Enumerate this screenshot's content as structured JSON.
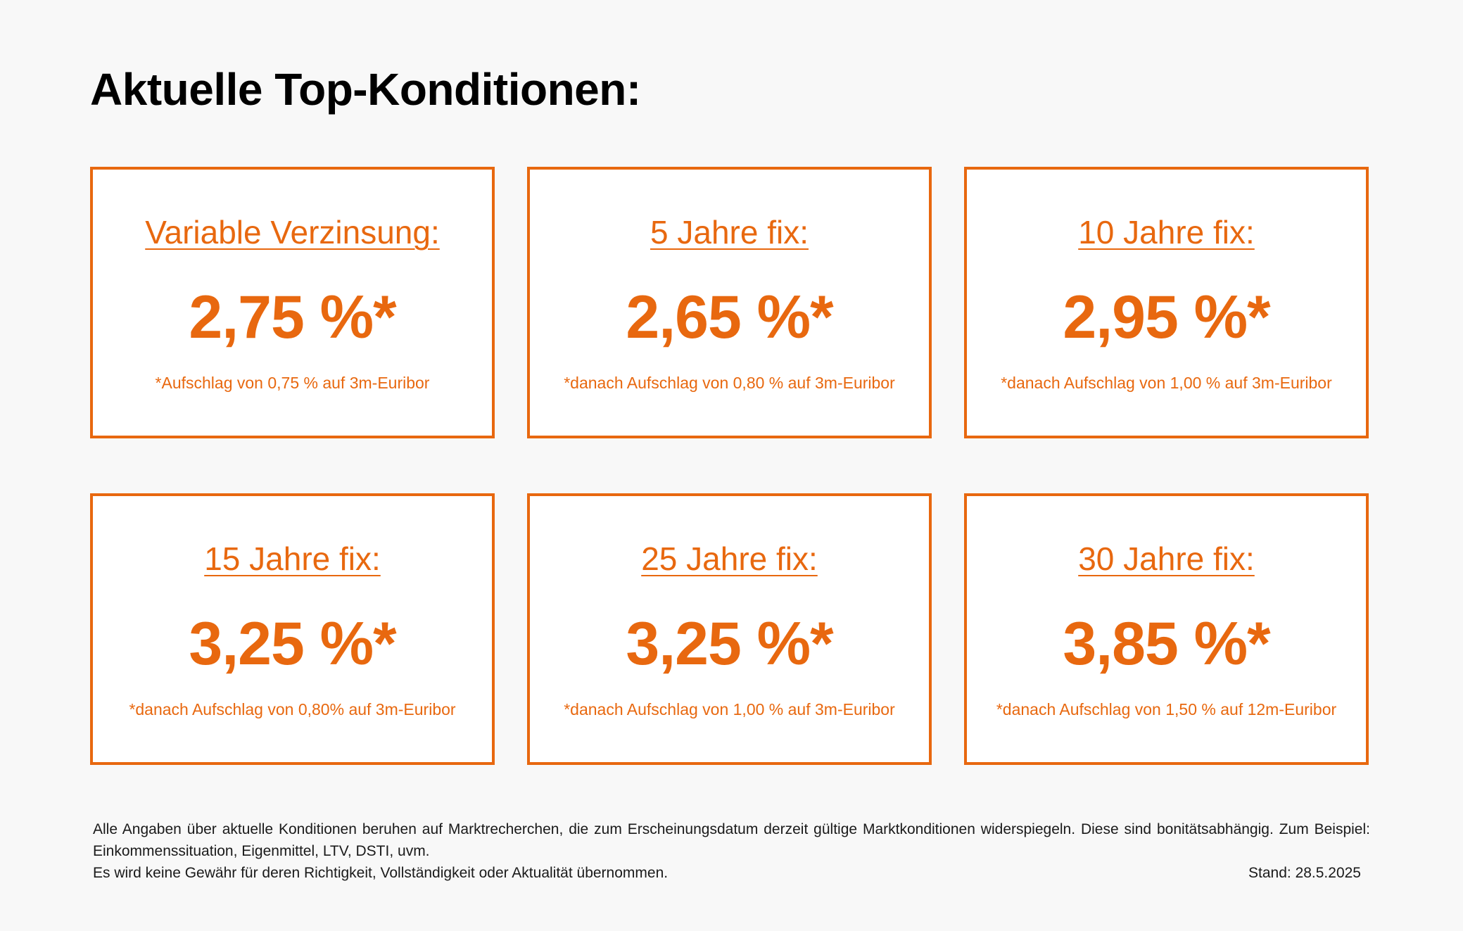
{
  "header": {
    "title": "Aktuelle Top-Konditionen:"
  },
  "cards": [
    {
      "title": "Variable Verzinsung:",
      "rate": "2,75 %*",
      "note": "*Aufschlag von 0,75 % auf 3m-Euribor"
    },
    {
      "title": "5 Jahre fix:",
      "rate": "2,65 %*",
      "note": "*danach Aufschlag von 0,80 % auf 3m-Euribor"
    },
    {
      "title": "10 Jahre fix:",
      "rate": "2,95 %*",
      "note": "*danach Aufschlag von 1,00 % auf 3m-Euribor"
    },
    {
      "title": "15 Jahre fix:",
      "rate": "3,25 %*",
      "note": "*danach Aufschlag von 0,80% auf 3m-Euribor"
    },
    {
      "title": "25 Jahre fix:",
      "rate": "3,25 %*",
      "note": "*danach Aufschlag von 1,00 % auf 3m-Euribor"
    },
    {
      "title": "30 Jahre fix:",
      "rate": "3,85 %*",
      "note": "*danach Aufschlag von 1,50 % auf 12m-Euribor"
    }
  ],
  "footer": {
    "disclaimer_1": "Alle Angaben über aktuelle Konditionen beruhen auf Marktrecherchen, die zum Erscheinungsdatum derzeit gültige Marktkonditionen widerspiegeln. Diese sind bonitätsabhängig. Zum Beispiel: Einkommenssituation, Eigenmittel, LTV, DSTI, uvm.",
    "disclaimer_2": "Es wird keine Gewähr für deren Richtigkeit, Vollständigkeit oder Aktualität übernommen.",
    "date": "Stand: 28.5.2025"
  },
  "colors": {
    "accent": "#e8680f",
    "background": "#f8f8f8",
    "card_background": "#ffffff",
    "text": "#000000"
  }
}
